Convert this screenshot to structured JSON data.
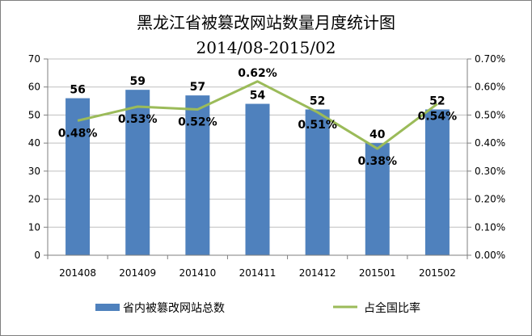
{
  "chart_data": {
    "type": "bar",
    "title": "黑龙江省被篡改网站数量月度统计图",
    "subtitle": "2014/08-2015/02",
    "categories": [
      "201408",
      "201409",
      "201410",
      "201411",
      "201412",
      "201501",
      "201502"
    ],
    "series": [
      {
        "name": "省内被篡改网站总数",
        "type": "bar",
        "axis": "left",
        "color": "#4f81bd",
        "values": [
          56,
          59,
          57,
          54,
          52,
          40,
          52
        ],
        "labels": [
          "56",
          "59",
          "57",
          "54",
          "52",
          "40",
          "52"
        ]
      },
      {
        "name": "占全国比率",
        "type": "line",
        "axis": "right",
        "color": "#9bbb59",
        "values": [
          0.0048,
          0.0053,
          0.0052,
          0.0062,
          0.0051,
          0.0038,
          0.0054
        ],
        "labels": [
          "0.48%",
          "0.53%",
          "0.52%",
          "0.62%",
          "0.51%",
          "0.38%",
          "0.54%"
        ]
      }
    ],
    "y_left": {
      "ylim": [
        0,
        70
      ],
      "ticks": [
        "0",
        "10",
        "20",
        "30",
        "40",
        "50",
        "60",
        "70"
      ]
    },
    "y_right": {
      "ylim": [
        0,
        0.007
      ],
      "ticks": [
        "0.00%",
        "0.10%",
        "0.20%",
        "0.30%",
        "0.40%",
        "0.50%",
        "0.60%",
        "0.70%"
      ]
    },
    "grid": true,
    "legend": "bottom"
  }
}
